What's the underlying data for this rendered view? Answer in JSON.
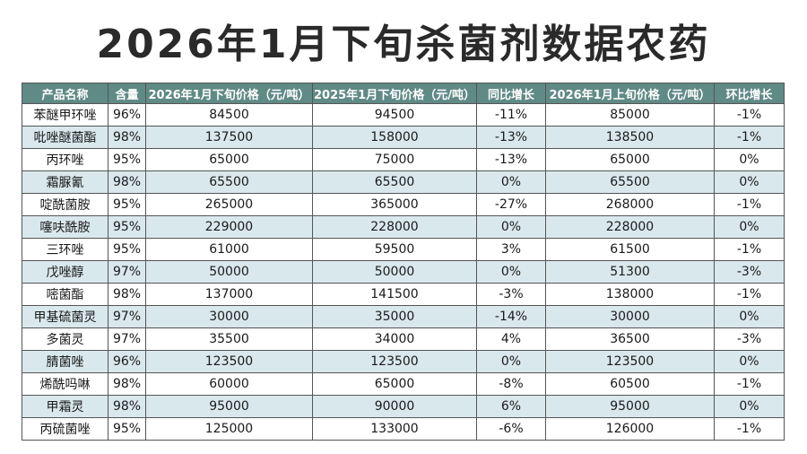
{
  "title": "2026年1月下旬杀菌剂数据农药",
  "colors": {
    "header_bg": "#5f8a86",
    "row_alt": "#d9e8ec"
  },
  "columns": [
    "产品名称",
    "含量",
    "2026年1月下旬价格（元/吨）",
    "2025年1月下旬价格（元/吨）",
    "同比增长",
    "2026年1月上旬价格（元/吨）",
    "环比增长"
  ],
  "rows": [
    [
      "苯醚甲环唑",
      "96%",
      "84500",
      "94500",
      "-11%",
      "85000",
      "-1%"
    ],
    [
      "吡唑醚菌酯",
      "98%",
      "137500",
      "158000",
      "-13%",
      "138500",
      "-1%"
    ],
    [
      "丙环唑",
      "95%",
      "65000",
      "75000",
      "-13%",
      "65000",
      "0%"
    ],
    [
      "霜脲氰",
      "98%",
      "65500",
      "65500",
      "0%",
      "65500",
      "0%"
    ],
    [
      "啶酰菌胺",
      "95%",
      "265000",
      "365000",
      "-27%",
      "268000",
      "-1%"
    ],
    [
      "噻呋酰胺",
      "95%",
      "229000",
      "228000",
      "0%",
      "228000",
      "0%"
    ],
    [
      "三环唑",
      "95%",
      "61000",
      "59500",
      "3%",
      "61500",
      "-1%"
    ],
    [
      "戊唑醇",
      "97%",
      "50000",
      "50000",
      "0%",
      "51300",
      "-3%"
    ],
    [
      "嘧菌酯",
      "98%",
      "137000",
      "141500",
      "-3%",
      "138000",
      "-1%"
    ],
    [
      "甲基硫菌灵",
      "97%",
      "30000",
      "35000",
      "-14%",
      "30000",
      "0%"
    ],
    [
      "多菌灵",
      "97%",
      "35500",
      "34000",
      "4%",
      "36500",
      "-3%"
    ],
    [
      "腈菌唑",
      "96%",
      "123500",
      "123500",
      "0%",
      "123500",
      "0%"
    ],
    [
      "烯酰吗啉",
      "98%",
      "60000",
      "65000",
      "-8%",
      "60500",
      "-1%"
    ],
    [
      "甲霜灵",
      "98%",
      "95000",
      "90000",
      "6%",
      "95000",
      "0%"
    ],
    [
      "丙硫菌唑",
      "95%",
      "125000",
      "133000",
      "-6%",
      "126000",
      "-1%"
    ]
  ]
}
